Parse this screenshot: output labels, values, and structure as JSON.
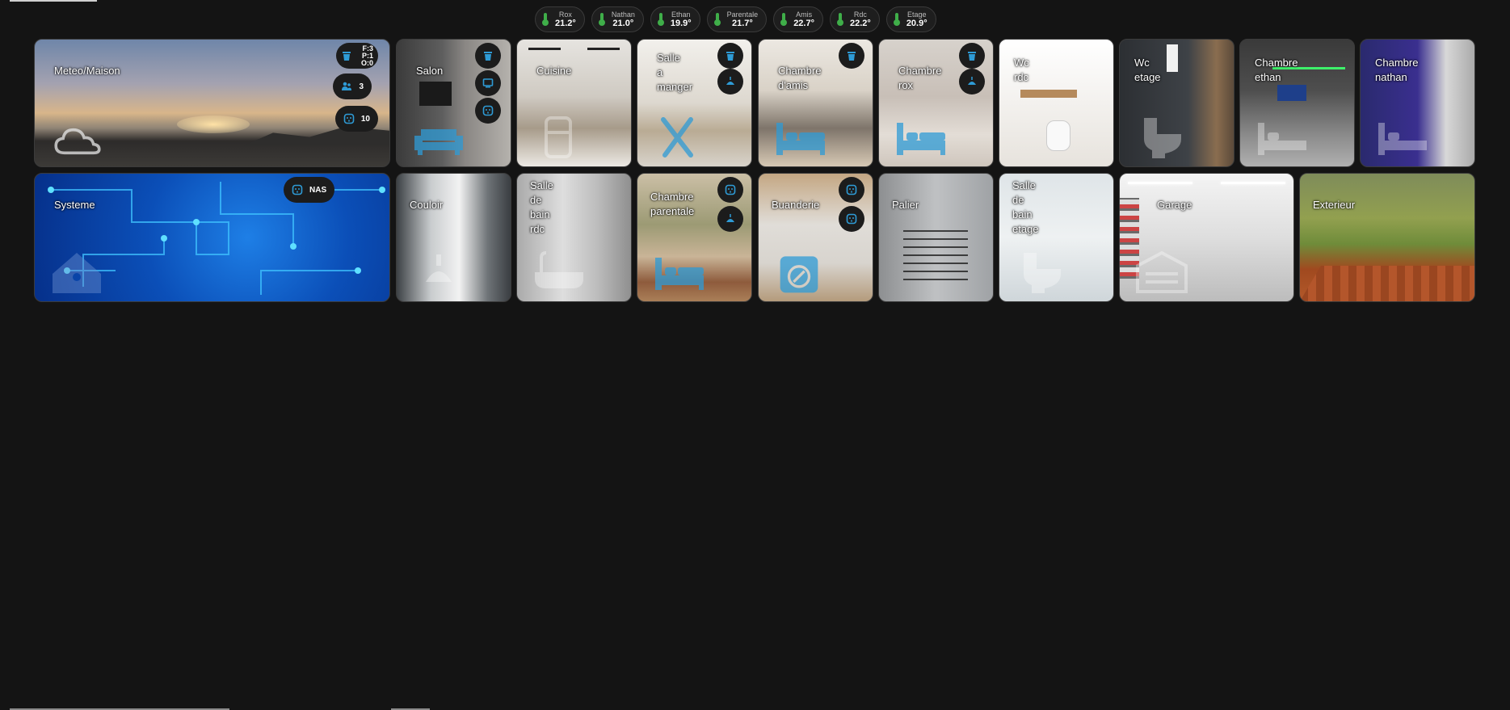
{
  "chips": [
    {
      "name": "Rox",
      "temp": "21.2°"
    },
    {
      "name": "Nathan",
      "temp": "21.0°"
    },
    {
      "name": "Ethan",
      "temp": "19.9°"
    },
    {
      "name": "Parentale",
      "temp": "21.7°"
    },
    {
      "name": "Amis",
      "temp": "22.7°"
    },
    {
      "name": "Rdc",
      "temp": "22.2°"
    },
    {
      "name": "Etage",
      "temp": "20.9°"
    }
  ],
  "cards": {
    "meteo": {
      "title": "Meteo/Maison",
      "counts": {
        "fpo_f": "F:3",
        "fpo_p": "P:1",
        "fpo_o": "O:0",
        "people": "3",
        "devices": "10"
      }
    },
    "salon": {
      "title": "Salon"
    },
    "cuisine": {
      "title": "Cuisine"
    },
    "salle_a_manger": {
      "title": "Salle\na\nmanger"
    },
    "chambre_amis": {
      "title": "Chambre\nd'amis"
    },
    "chambre_rox": {
      "title": "Chambre\nrox"
    },
    "wc_rdc": {
      "title": "Wc\nrdc"
    },
    "wc_etage": {
      "title": "Wc\netage"
    },
    "chambre_ethan": {
      "title": "Chambre\nethan"
    },
    "chambre_nathan": {
      "title": "Chambre\nnathan"
    },
    "systeme": {
      "title": "Systeme",
      "badge": "NAS"
    },
    "couloir": {
      "title": "Couloir"
    },
    "sdb_rdc": {
      "title": "Salle\nde\nbain\nrdc"
    },
    "chambre_parentale": {
      "title": "Chambre\nparentale"
    },
    "buanderie": {
      "title": "Buanderie"
    },
    "palier": {
      "title": "Palier"
    },
    "sdb_etage": {
      "title": "Salle\nde\nbain\netage"
    },
    "garage": {
      "title": "Garage"
    },
    "exterieur": {
      "title": "Exterieur"
    }
  },
  "colors": {
    "accent": "#2e9bd6",
    "background": "#141414",
    "chip": "#1e1e1e",
    "thermo": "#3fae49"
  }
}
